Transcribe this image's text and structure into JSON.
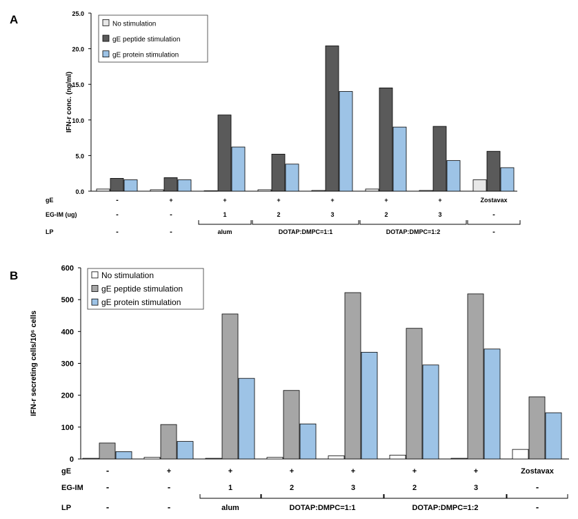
{
  "chart_data": [
    {
      "type": "bar",
      "panel_label": "A",
      "ylabel": "IFN-r conc. (ng/ml)",
      "ylim": [
        0,
        25
      ],
      "yticks": [
        "0.0",
        "5.0",
        "10.0",
        "15.0",
        "20.0",
        "25.0"
      ],
      "grid": false,
      "legend_position": "top-left",
      "series": [
        {
          "name": "No stimulation",
          "color": "#e8e8e8",
          "values": [
            0.3,
            0.2,
            0.0,
            0.2,
            0.1,
            0.3,
            0.1,
            1.6
          ]
        },
        {
          "name": "gE peptide stimulation",
          "color": "#5a5a5a",
          "values": [
            1.8,
            1.9,
            10.7,
            5.2,
            20.4,
            14.5,
            9.1,
            5.6
          ]
        },
        {
          "name": "gE protein stimulation",
          "color": "#9dc3e6",
          "values": [
            1.6,
            1.6,
            6.2,
            3.8,
            14.0,
            9.0,
            4.3,
            3.3
          ]
        }
      ],
      "table": {
        "rows": [
          {
            "label": "gE",
            "cells": [
              "-",
              "+",
              "+",
              "+",
              "+",
              "+",
              "+",
              "Zostavax"
            ]
          },
          {
            "label": "EG-IM  (ug)",
            "cells": [
              "-",
              "-",
              "1",
              "2",
              "3",
              "2",
              "3",
              "-"
            ]
          }
        ],
        "lp": {
          "label": "LP",
          "cells": [
            "-",
            "-"
          ],
          "groups": [
            {
              "text": "alum",
              "from": 2,
              "to": 2
            },
            {
              "text": "DOTAP:DMPC=1:1",
              "from": 3,
              "to": 4
            },
            {
              "text": "DOTAP:DMPC=1:2",
              "from": 5,
              "to": 6
            },
            {
              "text": "-",
              "from": 7,
              "to": 7
            }
          ]
        }
      }
    },
    {
      "type": "bar",
      "panel_label": "B",
      "ylabel": "IFN-r secreting cells/10⁶ cells",
      "ylim": [
        0,
        600
      ],
      "yticks": [
        "0",
        "100",
        "200",
        "300",
        "400",
        "500",
        "600"
      ],
      "grid": false,
      "legend_position": "top-left",
      "series": [
        {
          "name": "No stimulation",
          "color": "#ffffff",
          "values": [
            2,
            5,
            2,
            5,
            10,
            12,
            2,
            30
          ]
        },
        {
          "name": "gE peptide stimulation",
          "color": "#a6a6a6",
          "values": [
            50,
            108,
            455,
            215,
            522,
            410,
            518,
            195
          ]
        },
        {
          "name": "gE protein stimulation",
          "color": "#9dc3e6",
          "values": [
            23,
            55,
            253,
            110,
            335,
            295,
            345,
            145
          ]
        }
      ],
      "table": {
        "rows": [
          {
            "label": "gE",
            "cells": [
              "-",
              "+",
              "+",
              "+",
              "+",
              "+",
              "+",
              "Zostavax"
            ]
          },
          {
            "label": "EG-IM",
            "cells": [
              "-",
              "-",
              "1",
              "2",
              "3",
              "2",
              "3",
              "-"
            ]
          }
        ],
        "lp": {
          "label": "LP",
          "cells": [
            "-",
            "-"
          ],
          "groups": [
            {
              "text": "alum",
              "from": 2,
              "to": 2
            },
            {
              "text": "DOTAP:DMPC=1:1",
              "from": 3,
              "to": 4
            },
            {
              "text": "DOTAP:DMPC=1:2",
              "from": 5,
              "to": 6
            },
            {
              "text": "-",
              "from": 7,
              "to": 7
            }
          ]
        }
      }
    }
  ]
}
